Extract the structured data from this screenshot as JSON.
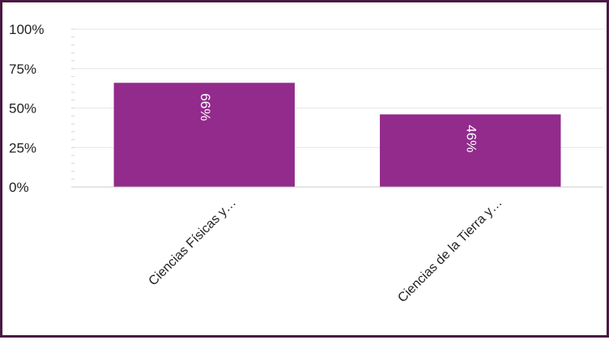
{
  "chart_data": {
    "type": "bar",
    "categories": [
      "Ciencias Físicas y…",
      "Ciencias de la Tierra y…"
    ],
    "values": [
      66,
      46
    ],
    "data_labels": [
      "66%",
      "46%"
    ],
    "y_ticks": [
      "0%",
      "25%",
      "50%",
      "75%",
      "100%"
    ],
    "ylim": [
      0,
      100
    ],
    "grid": true,
    "bar_color": "#922b8c",
    "border_color": "#4a1942"
  }
}
